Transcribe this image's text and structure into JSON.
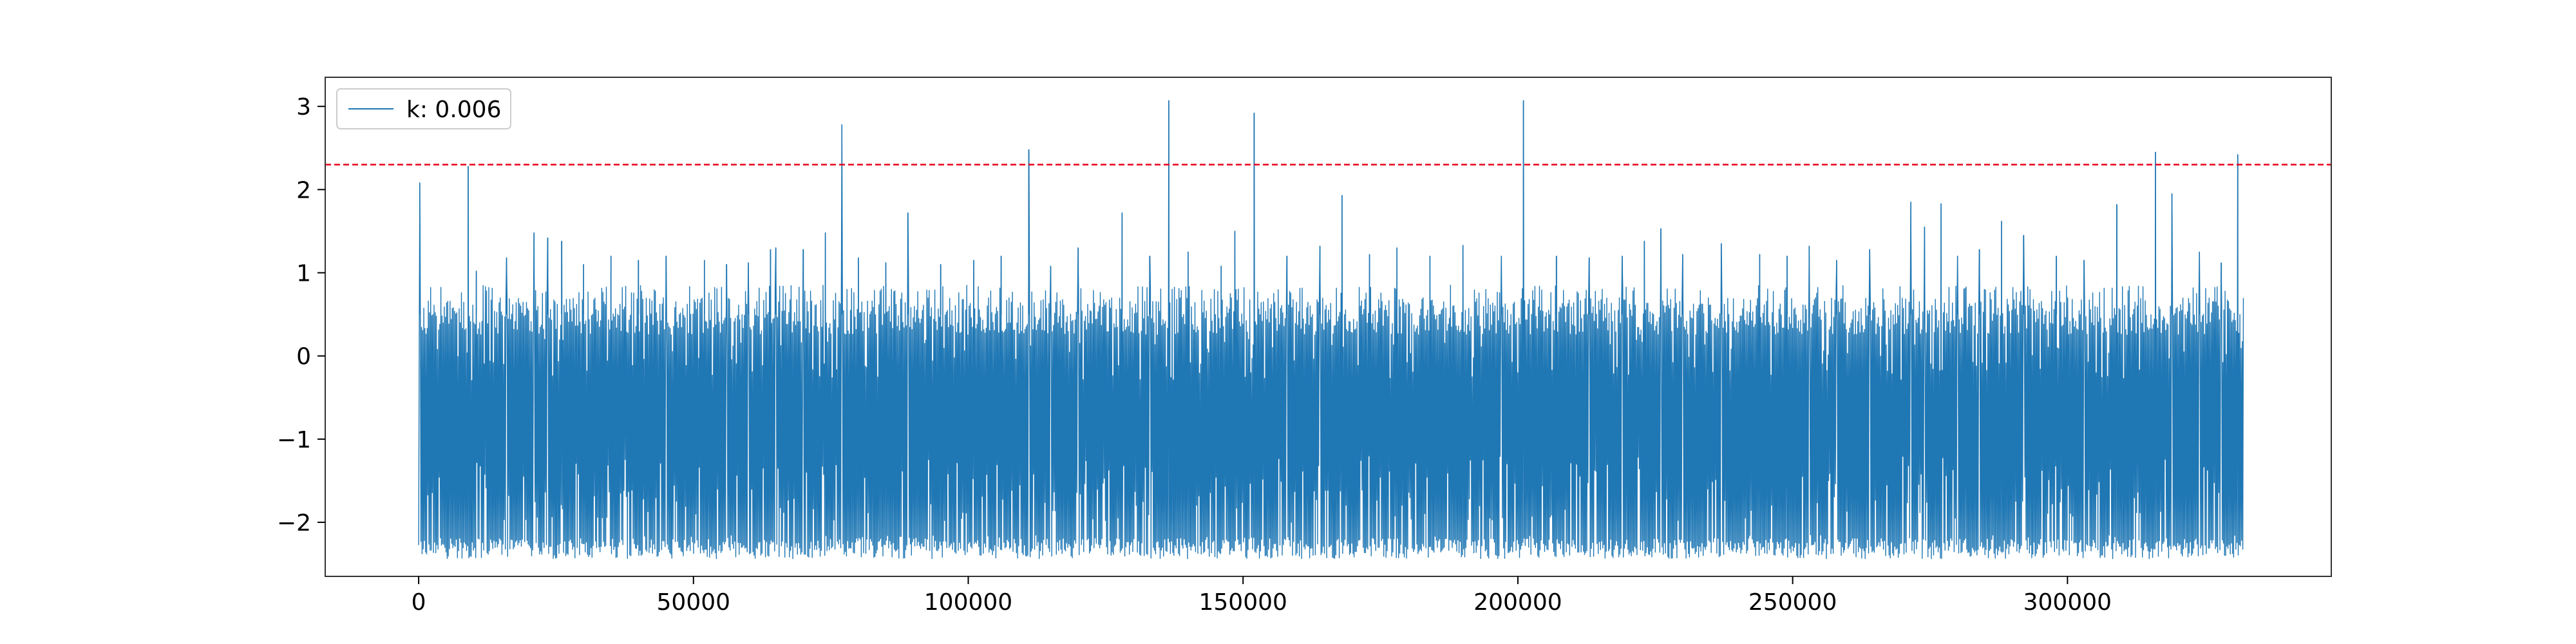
{
  "chart_data": {
    "type": "line",
    "title": "",
    "xlabel": "",
    "ylabel": "",
    "xlim": [
      -17000,
      348000
    ],
    "ylim": [
      -2.65,
      3.35
    ],
    "x_ticks": [
      0,
      50000,
      100000,
      150000,
      200000,
      250000,
      300000
    ],
    "x_tick_labels": [
      "0",
      "50000",
      "100000",
      "150000",
      "200000",
      "250000",
      "300000"
    ],
    "y_ticks": [
      -2,
      -1,
      0,
      1,
      2,
      3
    ],
    "y_tick_labels": [
      "−2",
      "−1",
      "0",
      "1",
      "2",
      "3"
    ],
    "grid": false,
    "legend_position": "upper-left",
    "series": [
      {
        "name": "k: 0.006",
        "color": "#1f77b4",
        "x_range": [
          0,
          332000
        ],
        "band_low": -2.3,
        "band_high": 0.7,
        "baseline_min": -2.4,
        "baseline_max": 0.85,
        "spikes": [
          [
            200,
            2.08
          ],
          [
            9000,
            2.28
          ],
          [
            10500,
            1.02
          ],
          [
            16000,
            1.18
          ],
          [
            21000,
            1.48
          ],
          [
            23500,
            1.42
          ],
          [
            26000,
            1.38
          ],
          [
            30000,
            1.1
          ],
          [
            35000,
            1.2
          ],
          [
            40000,
            1.15
          ],
          [
            45000,
            1.2
          ],
          [
            52000,
            1.15
          ],
          [
            56000,
            1.1
          ],
          [
            60000,
            1.12
          ],
          [
            64000,
            1.28
          ],
          [
            65000,
            1.3
          ],
          [
            70000,
            1.28
          ],
          [
            74000,
            1.48
          ],
          [
            77000,
            2.78
          ],
          [
            80000,
            1.18
          ],
          [
            85000,
            1.12
          ],
          [
            89000,
            1.72
          ],
          [
            95000,
            1.1
          ],
          [
            101000,
            1.15
          ],
          [
            106000,
            1.2
          ],
          [
            111000,
            2.48
          ],
          [
            115000,
            1.08
          ],
          [
            120000,
            1.3
          ],
          [
            128000,
            1.72
          ],
          [
            133000,
            1.2
          ],
          [
            136500,
            3.07
          ],
          [
            140000,
            1.25
          ],
          [
            146000,
            1.08
          ],
          [
            148500,
            1.5
          ],
          [
            152000,
            2.92
          ],
          [
            158000,
            1.2
          ],
          [
            164000,
            1.32
          ],
          [
            168000,
            1.93
          ],
          [
            173000,
            1.22
          ],
          [
            178000,
            1.3
          ],
          [
            184000,
            1.2
          ],
          [
            190000,
            1.33
          ],
          [
            197000,
            1.2
          ],
          [
            201000,
            3.07
          ],
          [
            207000,
            1.2
          ],
          [
            213000,
            1.18
          ],
          [
            219000,
            1.2
          ],
          [
            223000,
            1.38
          ],
          [
            226000,
            1.53
          ],
          [
            230000,
            1.22
          ],
          [
            237000,
            1.35
          ],
          [
            244000,
            1.22
          ],
          [
            249000,
            1.2
          ],
          [
            253000,
            1.32
          ],
          [
            258000,
            1.15
          ],
          [
            264000,
            1.28
          ],
          [
            271500,
            1.85
          ],
          [
            274000,
            1.55
          ],
          [
            277000,
            1.83
          ],
          [
            280000,
            1.2
          ],
          [
            284000,
            1.28
          ],
          [
            288000,
            1.62
          ],
          [
            292000,
            1.45
          ],
          [
            298000,
            1.2
          ],
          [
            303000,
            1.15
          ],
          [
            309000,
            1.82
          ],
          [
            316000,
            2.45
          ],
          [
            319000,
            1.95
          ],
          [
            324000,
            1.25
          ],
          [
            328000,
            1.12
          ],
          [
            331000,
            2.42
          ]
        ]
      }
    ],
    "reference_lines": [
      {
        "axis": "y",
        "value": 2.3,
        "color": "#e6001a",
        "style": "dashed"
      }
    ]
  }
}
